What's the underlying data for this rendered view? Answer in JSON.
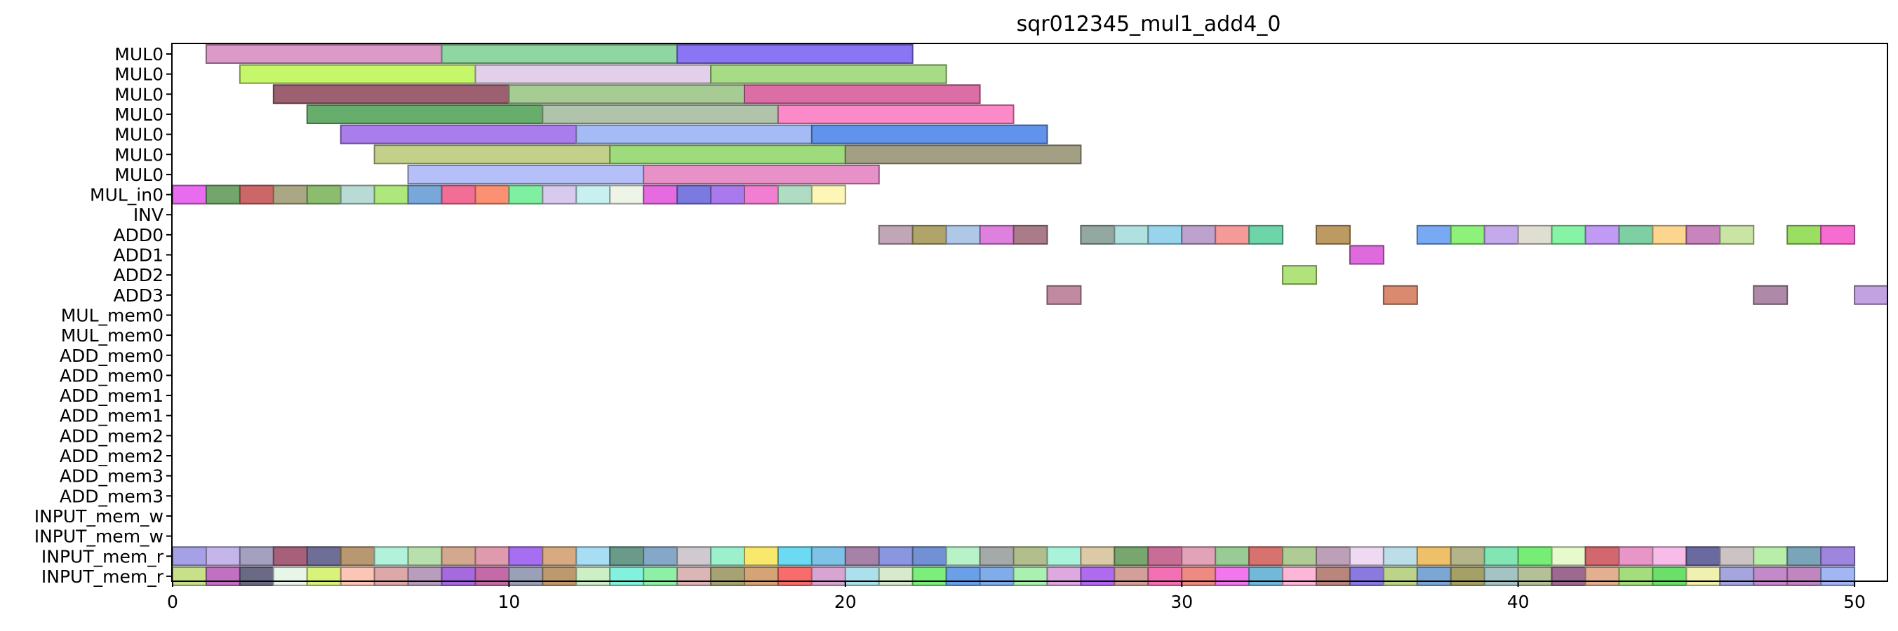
{
  "chart_data": {
    "type": "gantt",
    "title": "sqr012345_mul1_add4_0",
    "xlim": [
      0,
      51
    ],
    "xticks": [
      0,
      10,
      20,
      30,
      40,
      50
    ],
    "rows": [
      "MUL0",
      "MUL0",
      "MUL0",
      "MUL0",
      "MUL0",
      "MUL0",
      "MUL0",
      "MUL_in0",
      "INV",
      "ADD0",
      "ADD1",
      "ADD2",
      "ADD3",
      "MUL_mem0",
      "MUL_mem0",
      "ADD_mem0",
      "ADD_mem0",
      "ADD_mem1",
      "ADD_mem1",
      "ADD_mem2",
      "ADD_mem2",
      "ADD_mem3",
      "ADD_mem3",
      "INPUT_mem_w",
      "INPUT_mem_w",
      "INPUT_mem_r",
      "INPUT_mem_r"
    ],
    "tasks": [
      {
        "row": 0,
        "start": 1,
        "end": 8,
        "color": "#dc9ac8"
      },
      {
        "row": 0,
        "start": 8,
        "end": 15,
        "color": "#8ed6a2"
      },
      {
        "row": 0,
        "start": 15,
        "end": 22,
        "color": "#8a75f5"
      },
      {
        "row": 1,
        "start": 2,
        "end": 9,
        "color": "#c6f76a"
      },
      {
        "row": 1,
        "start": 9,
        "end": 16,
        "color": "#e2d0ea"
      },
      {
        "row": 1,
        "start": 16,
        "end": 23,
        "color": "#a7db86"
      },
      {
        "row": 2,
        "start": 3,
        "end": 10,
        "color": "#9c6070"
      },
      {
        "row": 2,
        "start": 10,
        "end": 17,
        "color": "#a6cc94"
      },
      {
        "row": 2,
        "start": 17,
        "end": 24,
        "color": "#dc6ea6"
      },
      {
        "row": 3,
        "start": 4,
        "end": 11,
        "color": "#67ae6c"
      },
      {
        "row": 3,
        "start": 11,
        "end": 18,
        "color": "#afc4aa"
      },
      {
        "row": 3,
        "start": 18,
        "end": 25,
        "color": "#fc8ac8"
      },
      {
        "row": 4,
        "start": 5,
        "end": 12,
        "color": "#a97deb"
      },
      {
        "row": 4,
        "start": 12,
        "end": 19,
        "color": "#a4bbf5"
      },
      {
        "row": 4,
        "start": 19,
        "end": 26,
        "color": "#6192ec"
      },
      {
        "row": 5,
        "start": 6,
        "end": 13,
        "color": "#c2d08a"
      },
      {
        "row": 5,
        "start": 13,
        "end": 20,
        "color": "#9ddb7c"
      },
      {
        "row": 5,
        "start": 20,
        "end": 27,
        "color": "#a39f84"
      },
      {
        "row": 6,
        "start": 7,
        "end": 14,
        "color": "#b4c0f7"
      },
      {
        "row": 6,
        "start": 14,
        "end": 21,
        "color": "#e891c8"
      },
      {
        "row": 7,
        "start": 0,
        "end": 1,
        "color": "#e96cf0"
      },
      {
        "row": 7,
        "start": 1,
        "end": 2,
        "color": "#73a66a"
      },
      {
        "row": 7,
        "start": 2,
        "end": 3,
        "color": "#cc6767"
      },
      {
        "row": 7,
        "start": 3,
        "end": 4,
        "color": "#aaa884"
      },
      {
        "row": 7,
        "start": 4,
        "end": 5,
        "color": "#8cbc6e"
      },
      {
        "row": 7,
        "start": 5,
        "end": 6,
        "color": "#b8dcd4"
      },
      {
        "row": 7,
        "start": 6,
        "end": 7,
        "color": "#aee87c"
      },
      {
        "row": 7,
        "start": 7,
        "end": 8,
        "color": "#78a8da"
      },
      {
        "row": 7,
        "start": 8,
        "end": 9,
        "color": "#f36e96"
      },
      {
        "row": 7,
        "start": 9,
        "end": 10,
        "color": "#fb9072"
      },
      {
        "row": 7,
        "start": 10,
        "end": 11,
        "color": "#7ef0a0"
      },
      {
        "row": 7,
        "start": 11,
        "end": 12,
        "color": "#d8caee"
      },
      {
        "row": 7,
        "start": 12,
        "end": 13,
        "color": "#c8f0f0"
      },
      {
        "row": 7,
        "start": 13,
        "end": 14,
        "color": "#eef4e8"
      },
      {
        "row": 7,
        "start": 14,
        "end": 15,
        "color": "#e66ae0"
      },
      {
        "row": 7,
        "start": 15,
        "end": 16,
        "color": "#7a7ae0"
      },
      {
        "row": 7,
        "start": 16,
        "end": 17,
        "color": "#a87aee"
      },
      {
        "row": 7,
        "start": 17,
        "end": 18,
        "color": "#f17ed0"
      },
      {
        "row": 7,
        "start": 18,
        "end": 19,
        "color": "#b0dcc4"
      },
      {
        "row": 7,
        "start": 19,
        "end": 20,
        "color": "#fdf6b6"
      },
      {
        "row": 9,
        "start": 21,
        "end": 22,
        "color": "#c0a6b6"
      },
      {
        "row": 9,
        "start": 22,
        "end": 23,
        "color": "#b0a46a"
      },
      {
        "row": 9,
        "start": 23,
        "end": 24,
        "color": "#b0c8e8"
      },
      {
        "row": 9,
        "start": 24,
        "end": 25,
        "color": "#dd80de"
      },
      {
        "row": 9,
        "start": 25,
        "end": 26,
        "color": "#aa7c8a"
      },
      {
        "row": 9,
        "start": 27,
        "end": 28,
        "color": "#92a8a0"
      },
      {
        "row": 9,
        "start": 28,
        "end": 29,
        "color": "#b0e0e0"
      },
      {
        "row": 9,
        "start": 29,
        "end": 30,
        "color": "#98d4ec"
      },
      {
        "row": 9,
        "start": 30,
        "end": 31,
        "color": "#bca2cc"
      },
      {
        "row": 9,
        "start": 31,
        "end": 32,
        "color": "#f49a98"
      },
      {
        "row": 9,
        "start": 32,
        "end": 33,
        "color": "#6ed4aa"
      },
      {
        "row": 9,
        "start": 34,
        "end": 35,
        "color": "#bc9a62"
      },
      {
        "row": 9,
        "start": 37,
        "end": 38,
        "color": "#78aaf4"
      },
      {
        "row": 9,
        "start": 38,
        "end": 39,
        "color": "#8ef27a"
      },
      {
        "row": 9,
        "start": 39,
        "end": 40,
        "color": "#c4aaea"
      },
      {
        "row": 9,
        "start": 40,
        "end": 41,
        "color": "#e0ded0"
      },
      {
        "row": 9,
        "start": 41,
        "end": 42,
        "color": "#86f4a4"
      },
      {
        "row": 9,
        "start": 42,
        "end": 43,
        "color": "#c09af4"
      },
      {
        "row": 9,
        "start": 43,
        "end": 44,
        "color": "#7ed0a4"
      },
      {
        "row": 9,
        "start": 44,
        "end": 45,
        "color": "#fcd68e"
      },
      {
        "row": 9,
        "start": 45,
        "end": 46,
        "color": "#c884bc"
      },
      {
        "row": 9,
        "start": 46,
        "end": 47,
        "color": "#cae4a4"
      },
      {
        "row": 9,
        "start": 48,
        "end": 49,
        "color": "#9ade62"
      },
      {
        "row": 9,
        "start": 49,
        "end": 50,
        "color": "#f76cd0"
      },
      {
        "row": 10,
        "start": 35,
        "end": 36,
        "color": "#de6ade"
      },
      {
        "row": 11,
        "start": 33,
        "end": 34,
        "color": "#b2e27c"
      },
      {
        "row": 12,
        "start": 26,
        "end": 27,
        "color": "#c28aa0"
      },
      {
        "row": 12,
        "start": 36,
        "end": 37,
        "color": "#da8a6e"
      },
      {
        "row": 12,
        "start": 47,
        "end": 48,
        "color": "#ae8aa8"
      },
      {
        "row": 12,
        "start": 50,
        "end": 51,
        "color": "#c2a2e0"
      },
      {
        "row": 25,
        "start": 0,
        "end": 1,
        "color": "#a6a0e6"
      },
      {
        "row": 25,
        "start": 1,
        "end": 2,
        "color": "#c4b6ea"
      },
      {
        "row": 25,
        "start": 2,
        "end": 3,
        "color": "#a4a0c0"
      },
      {
        "row": 25,
        "start": 3,
        "end": 4,
        "color": "#a6607a"
      },
      {
        "row": 25,
        "start": 4,
        "end": 5,
        "color": "#6e6e96"
      },
      {
        "row": 25,
        "start": 5,
        "end": 6,
        "color": "#b89870"
      },
      {
        "row": 25,
        "start": 6,
        "end": 7,
        "color": "#b2f2da"
      },
      {
        "row": 25,
        "start": 7,
        "end": 8,
        "color": "#b8e0ac"
      },
      {
        "row": 25,
        "start": 8,
        "end": 9,
        "color": "#d2a88e"
      },
      {
        "row": 25,
        "start": 9,
        "end": 10,
        "color": "#e09aae"
      },
      {
        "row": 25,
        "start": 10,
        "end": 11,
        "color": "#a66ef0"
      },
      {
        "row": 25,
        "start": 11,
        "end": 12,
        "color": "#d8aa82"
      },
      {
        "row": 25,
        "start": 12,
        "end": 13,
        "color": "#a8def4"
      },
      {
        "row": 25,
        "start": 13,
        "end": 14,
        "color": "#6a9a8a"
      },
      {
        "row": 25,
        "start": 14,
        "end": 15,
        "color": "#86a8c8"
      },
      {
        "row": 25,
        "start": 15,
        "end": 16,
        "color": "#d0cad0"
      },
      {
        "row": 25,
        "start": 16,
        "end": 17,
        "color": "#9cf0cc"
      },
      {
        "row": 25,
        "start": 17,
        "end": 18,
        "color": "#f8e86c"
      },
      {
        "row": 25,
        "start": 18,
        "end": 19,
        "color": "#6cdaf2"
      },
      {
        "row": 25,
        "start": 19,
        "end": 20,
        "color": "#7ec2e8"
      },
      {
        "row": 25,
        "start": 20,
        "end": 21,
        "color": "#a682a6"
      },
      {
        "row": 25,
        "start": 21,
        "end": 22,
        "color": "#8a96e0"
      },
      {
        "row": 25,
        "start": 22,
        "end": 23,
        "color": "#7290d4"
      },
      {
        "row": 25,
        "start": 23,
        "end": 24,
        "color": "#b8f2c8"
      },
      {
        "row": 25,
        "start": 24,
        "end": 25,
        "color": "#a4aaa8"
      },
      {
        "row": 25,
        "start": 25,
        "end": 26,
        "color": "#b2be8c"
      },
      {
        "row": 25,
        "start": 26,
        "end": 27,
        "color": "#aaf2da"
      },
      {
        "row": 25,
        "start": 27,
        "end": 28,
        "color": "#dccaa6"
      },
      {
        "row": 25,
        "start": 28,
        "end": 29,
        "color": "#78a66e"
      },
      {
        "row": 25,
        "start": 29,
        "end": 30,
        "color": "#c86e96"
      },
      {
        "row": 25,
        "start": 30,
        "end": 31,
        "color": "#e2a2b8"
      },
      {
        "row": 25,
        "start": 31,
        "end": 32,
        "color": "#98cc94"
      },
      {
        "row": 25,
        "start": 32,
        "end": 33,
        "color": "#d8726e"
      },
      {
        "row": 25,
        "start": 33,
        "end": 34,
        "color": "#aecc94"
      },
      {
        "row": 25,
        "start": 34,
        "end": 35,
        "color": "#bca0b8"
      },
      {
        "row": 25,
        "start": 35,
        "end": 36,
        "color": "#eedaf2"
      },
      {
        "row": 25,
        "start": 36,
        "end": 37,
        "color": "#bcdee8"
      },
      {
        "row": 25,
        "start": 37,
        "end": 38,
        "color": "#eec06a"
      },
      {
        "row": 25,
        "start": 38,
        "end": 39,
        "color": "#b4b48a"
      },
      {
        "row": 25,
        "start": 39,
        "end": 40,
        "color": "#82e6b4"
      },
      {
        "row": 25,
        "start": 40,
        "end": 41,
        "color": "#76ee76"
      },
      {
        "row": 25,
        "start": 41,
        "end": 42,
        "color": "#e6facc"
      },
      {
        "row": 25,
        "start": 42,
        "end": 43,
        "color": "#d2686e"
      },
      {
        "row": 25,
        "start": 43,
        "end": 44,
        "color": "#e896c8"
      },
      {
        "row": 25,
        "start": 44,
        "end": 45,
        "color": "#f8bce8"
      },
      {
        "row": 25,
        "start": 45,
        "end": 46,
        "color": "#6a6aa0"
      },
      {
        "row": 25,
        "start": 46,
        "end": 47,
        "color": "#ccc4c4"
      },
      {
        "row": 25,
        "start": 47,
        "end": 48,
        "color": "#b8eeaa"
      },
      {
        "row": 25,
        "start": 48,
        "end": 49,
        "color": "#7aa4b8"
      },
      {
        "row": 25,
        "start": 49,
        "end": 50,
        "color": "#9e86de"
      },
      {
        "row": 26,
        "start": 0,
        "end": 1,
        "color": "#c8e08a"
      },
      {
        "row": 26,
        "start": 1,
        "end": 2,
        "color": "#c270c0"
      },
      {
        "row": 26,
        "start": 2,
        "end": 3,
        "color": "#6a6a86"
      },
      {
        "row": 26,
        "start": 3,
        "end": 4,
        "color": "#e8f6ea"
      },
      {
        "row": 26,
        "start": 4,
        "end": 5,
        "color": "#d8f27a"
      },
      {
        "row": 26,
        "start": 5,
        "end": 6,
        "color": "#fcc6b6"
      },
      {
        "row": 26,
        "start": 6,
        "end": 7,
        "color": "#dca8a8"
      },
      {
        "row": 26,
        "start": 7,
        "end": 8,
        "color": "#b89ebc"
      },
      {
        "row": 26,
        "start": 8,
        "end": 9,
        "color": "#a66ae0"
      },
      {
        "row": 26,
        "start": 9,
        "end": 10,
        "color": "#c46aa8"
      },
      {
        "row": 26,
        "start": 10,
        "end": 11,
        "color": "#9aa0b8"
      },
      {
        "row": 26,
        "start": 11,
        "end": 12,
        "color": "#bc9a6e"
      },
      {
        "row": 26,
        "start": 12,
        "end": 13,
        "color": "#ccf0c4"
      },
      {
        "row": 26,
        "start": 13,
        "end": 14,
        "color": "#82f2dc"
      },
      {
        "row": 26,
        "start": 14,
        "end": 15,
        "color": "#8ef0a6"
      },
      {
        "row": 26,
        "start": 15,
        "end": 16,
        "color": "#dcb6b6"
      },
      {
        "row": 26,
        "start": 16,
        "end": 17,
        "color": "#a6a274"
      },
      {
        "row": 26,
        "start": 17,
        "end": 18,
        "color": "#d4a476"
      },
      {
        "row": 26,
        "start": 18,
        "end": 19,
        "color": "#f86c6c"
      },
      {
        "row": 26,
        "start": 19,
        "end": 20,
        "color": "#d8a4d2"
      },
      {
        "row": 26,
        "start": 20,
        "end": 21,
        "color": "#ace0ec"
      },
      {
        "row": 26,
        "start": 21,
        "end": 22,
        "color": "#d8eacc"
      },
      {
        "row": 26,
        "start": 22,
        "end": 23,
        "color": "#7cee7c"
      },
      {
        "row": 26,
        "start": 23,
        "end": 24,
        "color": "#6aa0e8"
      },
      {
        "row": 26,
        "start": 24,
        "end": 25,
        "color": "#80acea"
      },
      {
        "row": 26,
        "start": 25,
        "end": 26,
        "color": "#aaf0b0"
      },
      {
        "row": 26,
        "start": 26,
        "end": 27,
        "color": "#dea8e0"
      },
      {
        "row": 26,
        "start": 27,
        "end": 28,
        "color": "#b06aee"
      },
      {
        "row": 26,
        "start": 28,
        "end": 29,
        "color": "#d2a098"
      },
      {
        "row": 26,
        "start": 29,
        "end": 30,
        "color": "#f470b4"
      },
      {
        "row": 26,
        "start": 30,
        "end": 31,
        "color": "#ee8a82"
      },
      {
        "row": 26,
        "start": 31,
        "end": 32,
        "color": "#f276ec"
      },
      {
        "row": 26,
        "start": 32,
        "end": 33,
        "color": "#72b8d8"
      },
      {
        "row": 26,
        "start": 33,
        "end": 34,
        "color": "#fcb6d8"
      },
      {
        "row": 26,
        "start": 34,
        "end": 35,
        "color": "#b8867c"
      },
      {
        "row": 26,
        "start": 35,
        "end": 36,
        "color": "#8a7ae0"
      },
      {
        "row": 26,
        "start": 36,
        "end": 37,
        "color": "#bcd48a"
      },
      {
        "row": 26,
        "start": 37,
        "end": 38,
        "color": "#7ca6d4"
      },
      {
        "row": 26,
        "start": 38,
        "end": 39,
        "color": "#a4a066"
      },
      {
        "row": 26,
        "start": 39,
        "end": 40,
        "color": "#a4c4c4"
      },
      {
        "row": 26,
        "start": 40,
        "end": 41,
        "color": "#b4c098"
      },
      {
        "row": 26,
        "start": 41,
        "end": 42,
        "color": "#9c6a90"
      },
      {
        "row": 26,
        "start": 42,
        "end": 43,
        "color": "#e2b090"
      },
      {
        "row": 26,
        "start": 43,
        "end": 44,
        "color": "#a4de7c"
      },
      {
        "row": 26,
        "start": 44,
        "end": 45,
        "color": "#6ae06a"
      },
      {
        "row": 26,
        "start": 45,
        "end": 46,
        "color": "#f0f0b0"
      },
      {
        "row": 26,
        "start": 46,
        "end": 47,
        "color": "#a6a6de"
      },
      {
        "row": 26,
        "start": 47,
        "end": 48,
        "color": "#c28ac8"
      },
      {
        "row": 26,
        "start": 48,
        "end": 49,
        "color": "#c086c0"
      },
      {
        "row": 26,
        "start": 49,
        "end": 50,
        "color": "#a2b6f4"
      }
    ]
  }
}
